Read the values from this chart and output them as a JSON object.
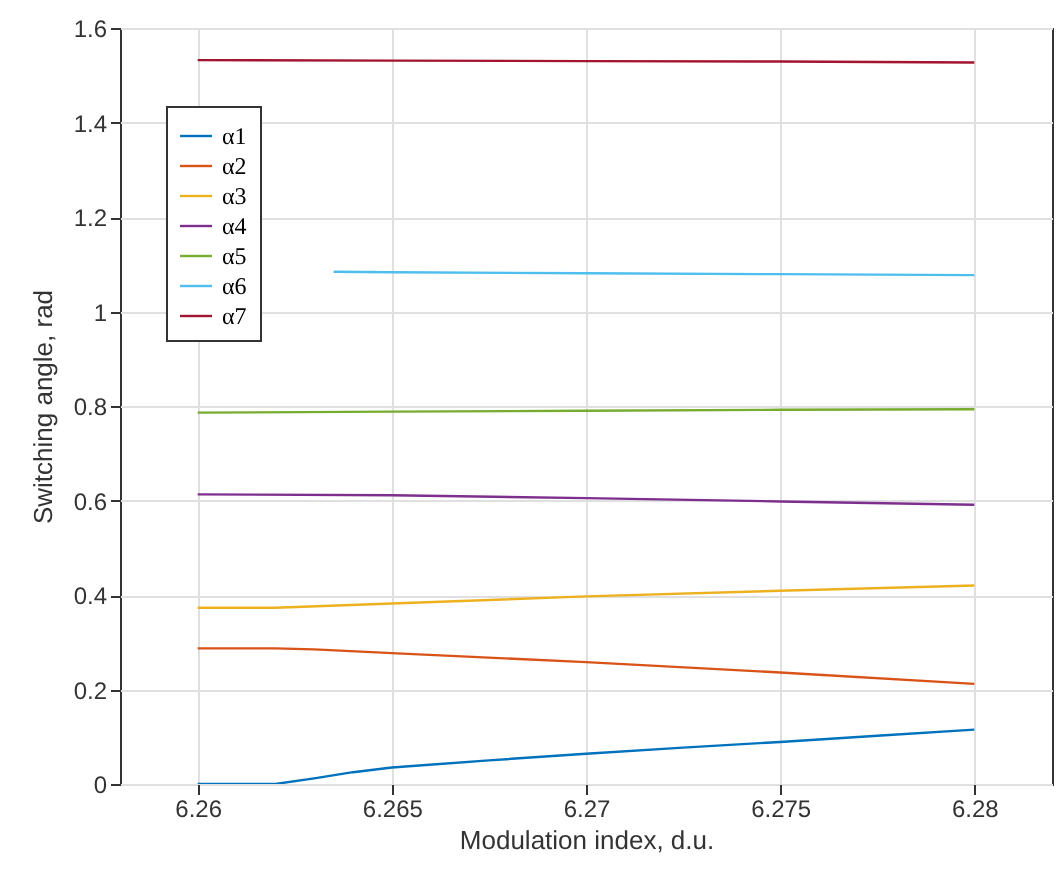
{
  "chart_data": {
    "type": "line",
    "xlabel": "Modulation index, d.u.",
    "ylabel": "Switching angle, rad",
    "xlim": [
      6.258,
      6.282
    ],
    "xticks": [
      6.26,
      6.265,
      6.27,
      6.275,
      6.28
    ],
    "ylim": [
      0,
      1.6
    ],
    "yticks": [
      0,
      0.2,
      0.4,
      0.6,
      0.8,
      1,
      1.2,
      1.4,
      1.6
    ],
    "grid": true,
    "legend": "top left",
    "line_style": "solid",
    "series": [
      {
        "name": "α1",
        "color": "#0072bd",
        "x": [
          6.26,
          6.262,
          6.263,
          6.264,
          6.265,
          6.2675,
          6.27,
          6.2725,
          6.275,
          6.2775,
          6.28
        ],
        "values": [
          0,
          0,
          0.012,
          0.025,
          0.035,
          0.05,
          0.064,
          0.077,
          0.089,
          0.102,
          0.115
        ]
      },
      {
        "name": "α2",
        "color": "#d95319",
        "x": [
          6.26,
          6.262,
          6.263,
          6.265,
          6.27,
          6.275,
          6.28
        ],
        "values": [
          0.287,
          0.287,
          0.285,
          0.277,
          0.258,
          0.236,
          0.212
        ]
      },
      {
        "name": "α3",
        "color": "#edb120",
        "x": [
          6.26,
          6.262,
          6.265,
          6.27,
          6.275,
          6.28
        ],
        "values": [
          0.373,
          0.373,
          0.382,
          0.397,
          0.409,
          0.42
        ]
      },
      {
        "name": "α4",
        "color": "#7e2f8e",
        "x": [
          6.26,
          6.265,
          6.27,
          6.275,
          6.28
        ],
        "values": [
          0.613,
          0.611,
          0.605,
          0.598,
          0.591
        ]
      },
      {
        "name": "α5",
        "color": "#77ac30",
        "x": [
          6.26,
          6.265,
          6.27,
          6.275,
          6.28
        ],
        "values": [
          0.786,
          0.788,
          0.79,
          0.792,
          0.793
        ]
      },
      {
        "name": "α6",
        "color": "#4dbeee",
        "x": [
          6.2635,
          6.265,
          6.27,
          6.275,
          6.28
        ],
        "values": [
          1.084,
          1.083,
          1.081,
          1.079,
          1.077
        ]
      },
      {
        "name": "α7",
        "color": "#a2142f",
        "x": [
          6.26,
          6.265,
          6.27,
          6.275,
          6.28
        ],
        "values": [
          1.532,
          1.531,
          1.53,
          1.529,
          1.527
        ]
      }
    ]
  }
}
